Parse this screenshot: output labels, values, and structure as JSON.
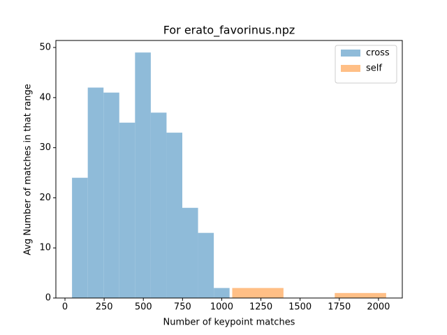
{
  "chart_data": {
    "type": "histogram",
    "title": "For erato_favorinus.npz",
    "x_label": "Number of keypoint matches",
    "y_label": "Avg Number of matches in that range",
    "series": [
      {
        "name": "cross",
        "color": "#8fbbd9",
        "bins": [
          45,
          145.5,
          246,
          346.5,
          447,
          547.5,
          648,
          748.5,
          849,
          949.5,
          1050
        ],
        "values": [
          24,
          42,
          41,
          35,
          49,
          37,
          33,
          18,
          13,
          2
        ]
      },
      {
        "name": "self",
        "color": "#ffbf86",
        "bins": [
          1067,
          1394,
          1721,
          2049
        ],
        "values": [
          2,
          0,
          1
        ]
      }
    ],
    "xlim": [
      -58,
      2152
    ],
    "xticks": [
      0,
      250,
      500,
      750,
      1000,
      1250,
      1500,
      1750,
      2000
    ],
    "ylim": [
      0,
      51.4
    ],
    "yticks": [
      0,
      10,
      20,
      30,
      40,
      50
    ],
    "legend": "upper right"
  }
}
